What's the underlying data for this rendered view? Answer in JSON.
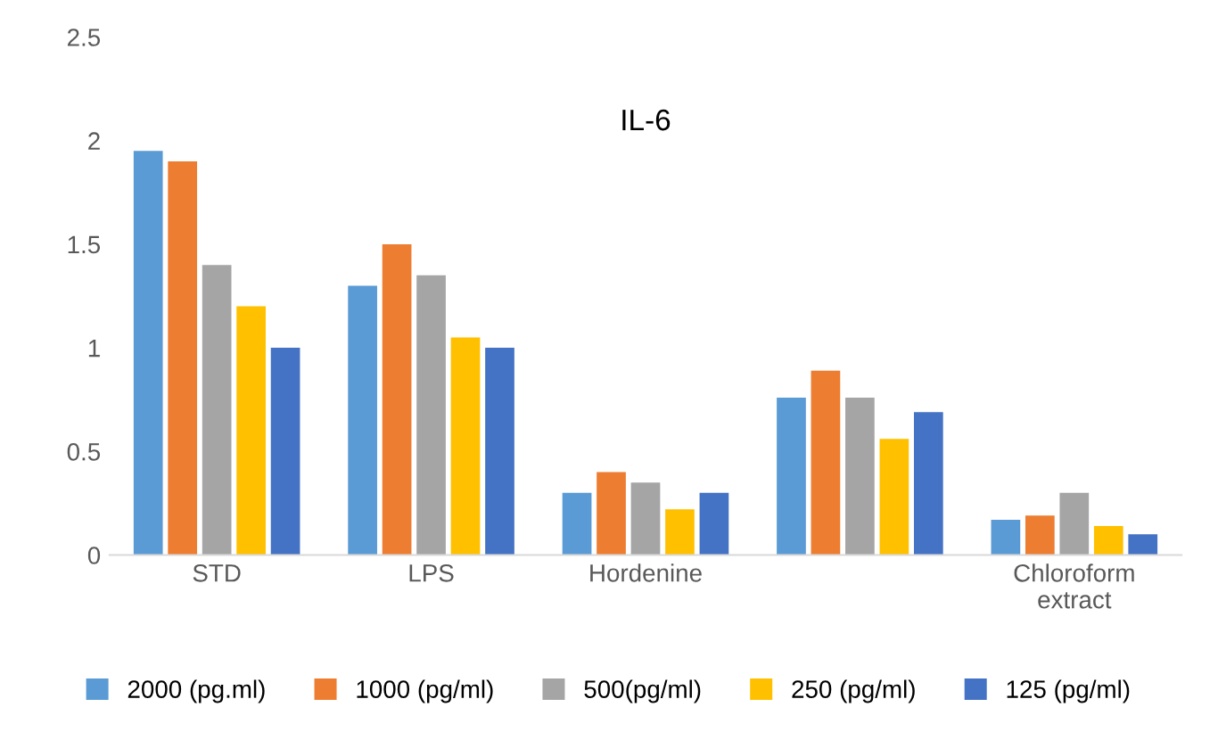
{
  "chart_data": {
    "type": "bar",
    "title": "IL-6",
    "categories": [
      "STD",
      "LPS",
      "Hordenine",
      null,
      "Chloroform\nextract"
    ],
    "series": [
      {
        "name": "2000 (pg.ml)",
        "color": "#5b9bd5",
        "values": [
          1.95,
          1.3,
          0.3,
          0.76,
          0.17
        ]
      },
      {
        "name": "1000 (pg/ml)",
        "color": "#ed7d31",
        "values": [
          1.9,
          1.5,
          0.4,
          0.89,
          0.19
        ]
      },
      {
        "name": "500(pg/ml)",
        "color": "#a5a5a5",
        "values": [
          1.4,
          1.35,
          0.35,
          0.76,
          0.3
        ]
      },
      {
        "name": "250 (pg/ml)",
        "color": "#ffc000",
        "values": [
          1.2,
          1.05,
          0.22,
          0.56,
          0.14
        ]
      },
      {
        "name": "125 (pg/ml)",
        "color": "#4472c4",
        "values": [
          1.0,
          1.0,
          0.3,
          0.69,
          0.1
        ]
      }
    ],
    "ylim": [
      0,
      2.5
    ],
    "yticks": [
      0,
      0.5,
      1,
      1.5,
      2,
      2.5
    ],
    "grid": false,
    "legend": "bottom"
  }
}
